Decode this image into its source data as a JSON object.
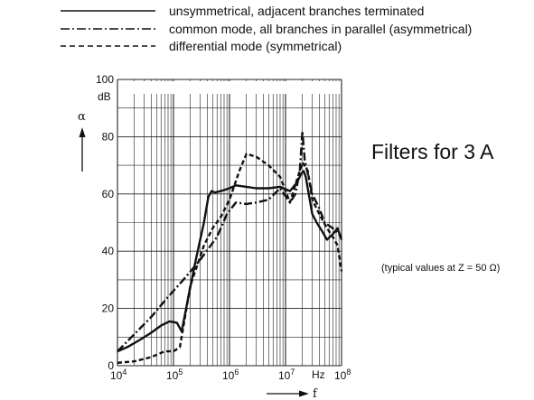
{
  "chart_data": {
    "type": "line",
    "title": "Filters for 3 A",
    "note": "(typical values at Z = 50 Ω)",
    "ylabel": "α",
    "yunit": "dB",
    "xlabel": "f",
    "xunit": "Hz",
    "xscale": "log",
    "xlim": [
      10000,
      100000000
    ],
    "ylim": [
      0,
      100
    ],
    "x_ticks": [
      {
        "value": 10000,
        "base": "10",
        "exp": "4"
      },
      {
        "value": 100000,
        "base": "10",
        "exp": "5"
      },
      {
        "value": 1000000,
        "base": "10",
        "exp": "6"
      },
      {
        "value": 10000000,
        "base": "10",
        "exp": "7"
      },
      {
        "value": 100000000,
        "base": "10",
        "exp": "8"
      }
    ],
    "y_ticks": [
      "0",
      "20",
      "40",
      "60",
      "80",
      "100"
    ],
    "grid": true,
    "legend_position": "top-left",
    "series": [
      {
        "name": "unsymmetrical, adjacent branches terminated",
        "style": "solid",
        "x": [
          10000,
          15000,
          25000,
          40000,
          60000,
          85000,
          115000,
          140000,
          180000,
          250000,
          350000,
          420000,
          480000,
          550000,
          700000,
          1000000,
          1300000,
          2000000,
          3000000,
          5000000,
          8000000,
          12000000,
          16000000,
          19000000,
          21000000,
          23000000,
          26000000,
          30000000,
          36000000,
          45000000,
          55000000,
          70000000,
          85000000,
          100000000
        ],
        "values": [
          5,
          6.5,
          9,
          11.5,
          14,
          15.5,
          15,
          12,
          23,
          37,
          50,
          59,
          61,
          60.5,
          61,
          62,
          63,
          62.5,
          62,
          62,
          62.5,
          61,
          64,
          67,
          68,
          66,
          60,
          53,
          50,
          47,
          44,
          46,
          48,
          44
        ]
      },
      {
        "name": "common mode, all branches in parallel (asymmetrical)",
        "style": "dashdot",
        "x": [
          10000,
          20000,
          40000,
          80000,
          150000,
          300000,
          600000,
          900000,
          1300000,
          2000000,
          3000000,
          5000000,
          8000000,
          12000000,
          15000000,
          18000000,
          20000000,
          22000000,
          25000000,
          30000000,
          40000000,
          50000000,
          70000000,
          100000000
        ],
        "values": [
          5,
          11,
          17,
          24,
          30,
          37,
          45,
          53,
          57,
          56.5,
          57,
          58,
          62,
          57,
          60,
          68,
          82,
          72,
          67,
          60,
          55,
          50,
          48,
          45
        ]
      },
      {
        "name": "differential mode (symmetrical)",
        "style": "dashed",
        "x": [
          10000,
          20000,
          40000,
          70000,
          100000,
          130000,
          200000,
          350000,
          500000,
          700000,
          1000000,
          1500000,
          2000000,
          3000000,
          5000000,
          8000000,
          12000000,
          16000000,
          20000000,
          25000000,
          30000000,
          40000000,
          55000000,
          70000000,
          85000000,
          100000000
        ],
        "values": [
          1,
          1.5,
          3,
          5,
          5,
          6.5,
          28,
          42,
          48,
          52,
          58,
          68,
          74,
          73,
          70,
          66,
          57,
          65,
          71,
          68,
          58,
          53,
          48,
          45,
          42,
          33
        ]
      }
    ]
  }
}
